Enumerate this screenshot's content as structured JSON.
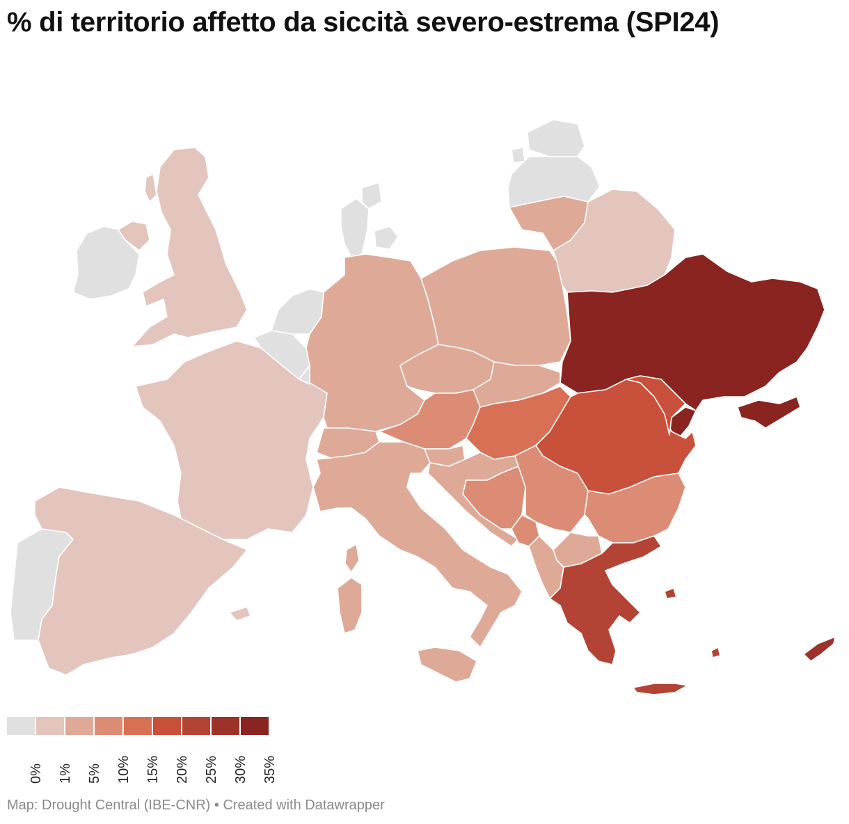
{
  "title": "% di territorio affetto da siccità severo-estrema  (SPI24)",
  "legend": {
    "colors": [
      "#e0e0e0",
      "#e3c5bd",
      "#dfa998",
      "#dc8c74",
      "#d87055",
      "#c9503a",
      "#b34435",
      "#9c3229",
      "#8a2420"
    ],
    "labels": [
      "0%",
      "1%",
      "5%",
      "10%",
      "15%",
      "20%",
      "25%",
      "30%",
      "35%"
    ]
  },
  "footer": {
    "source_label": "Map: Drought Central (IBE-CNR)",
    "separator": "•",
    "credit": "Created with Datawrapper"
  },
  "regions": [
    {
      "name": "Ireland",
      "class": "0%"
    },
    {
      "name": "Northern Ireland",
      "class": "1%"
    },
    {
      "name": "Great Britain",
      "class": "1%"
    },
    {
      "name": "Portugal",
      "class": "0%"
    },
    {
      "name": "Spain",
      "class": "1%"
    },
    {
      "name": "France",
      "class": "1%"
    },
    {
      "name": "Belgium",
      "class": "0%"
    },
    {
      "name": "Netherlands",
      "class": "0%"
    },
    {
      "name": "Luxembourg",
      "class": "0%"
    },
    {
      "name": "Germany",
      "class": "5%"
    },
    {
      "name": "Denmark",
      "class": "0%"
    },
    {
      "name": "Switzerland",
      "class": "5%"
    },
    {
      "name": "Italy",
      "class": "5%"
    },
    {
      "name": "Sardinia",
      "class": "5%"
    },
    {
      "name": "Sicily",
      "class": "5%"
    },
    {
      "name": "Corsica",
      "class": "5%"
    },
    {
      "name": "Austria",
      "class": "10%"
    },
    {
      "name": "Czechia",
      "class": "5%"
    },
    {
      "name": "Slovakia",
      "class": "5%"
    },
    {
      "name": "Poland",
      "class": "5%"
    },
    {
      "name": "Lithuania",
      "class": "5%"
    },
    {
      "name": "Latvia",
      "class": "0%"
    },
    {
      "name": "Estonia",
      "class": "0%"
    },
    {
      "name": "Belarus",
      "class": "1%"
    },
    {
      "name": "Ukraine",
      "class": "35%"
    },
    {
      "name": "Crimea",
      "class": "35%"
    },
    {
      "name": "Hungary",
      "class": "15%"
    },
    {
      "name": "Romania",
      "class": "20%"
    },
    {
      "name": "Moldova",
      "class": "20%"
    },
    {
      "name": "Transnistria",
      "class": "35%"
    },
    {
      "name": "Slovenia",
      "class": "5%"
    },
    {
      "name": "Croatia",
      "class": "5%"
    },
    {
      "name": "Bosnia and Herzegovina",
      "class": "10%"
    },
    {
      "name": "Serbia",
      "class": "10%"
    },
    {
      "name": "Montenegro",
      "class": "10%"
    },
    {
      "name": "Albania",
      "class": "5%"
    },
    {
      "name": "North Macedonia",
      "class": "5%"
    },
    {
      "name": "Bulgaria",
      "class": "10%"
    },
    {
      "name": "Greece",
      "class": "25%"
    },
    {
      "name": "Crete",
      "class": "25%"
    },
    {
      "name": "Cyprus",
      "class": "30%"
    },
    {
      "name": "Balearic Islands",
      "class": "1%"
    }
  ]
}
